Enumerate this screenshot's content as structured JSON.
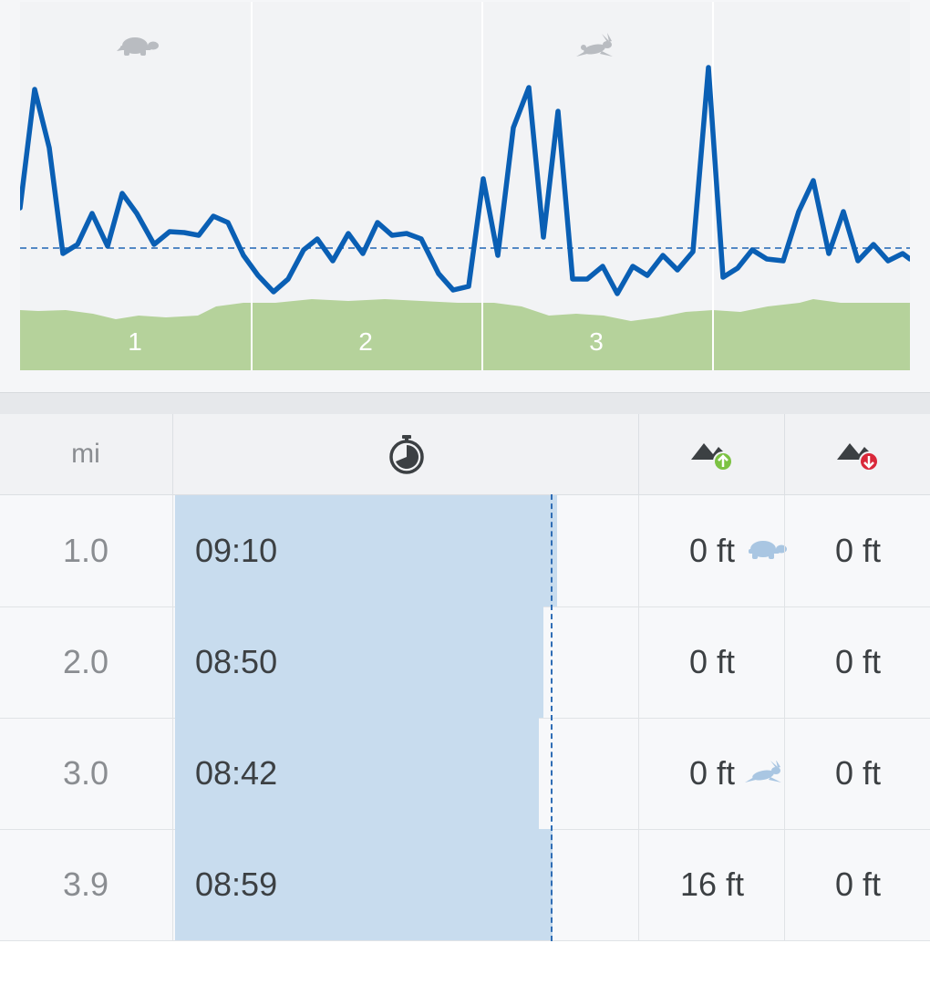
{
  "chart": {
    "split_labels": [
      "1",
      "2",
      "3"
    ],
    "colors": {
      "pace_line": "#0a5fb4",
      "avg_line": "#1e64b4",
      "elevation": "#b5d29b",
      "icon": "#b9bcc1"
    }
  },
  "table": {
    "header": {
      "mi": "mi",
      "time_icon": "stopwatch-icon",
      "gain_icon": "elevation-gain-icon",
      "loss_icon": "elevation-loss-icon"
    },
    "rows": [
      {
        "mi": "1.0",
        "time": "09:10",
        "gain": "0 ft",
        "loss": "0 ft",
        "pace_fraction": 0.82,
        "badge": "turtle-icon"
      },
      {
        "mi": "2.0",
        "time": "08:50",
        "gain": "0 ft",
        "loss": "0 ft",
        "pace_fraction": 0.79,
        "badge": ""
      },
      {
        "mi": "3.0",
        "time": "08:42",
        "gain": "0 ft",
        "loss": "0 ft",
        "pace_fraction": 0.78,
        "badge": "rabbit-icon"
      },
      {
        "mi": "3.9",
        "time": "08:59",
        "gain": "16 ft",
        "loss": "0 ft",
        "pace_fraction": 0.81,
        "badge": ""
      }
    ],
    "colors": {
      "bar": "#c8dcee",
      "gain_badge": "#7cc243",
      "loss_badge": "#d9283a"
    }
  }
}
